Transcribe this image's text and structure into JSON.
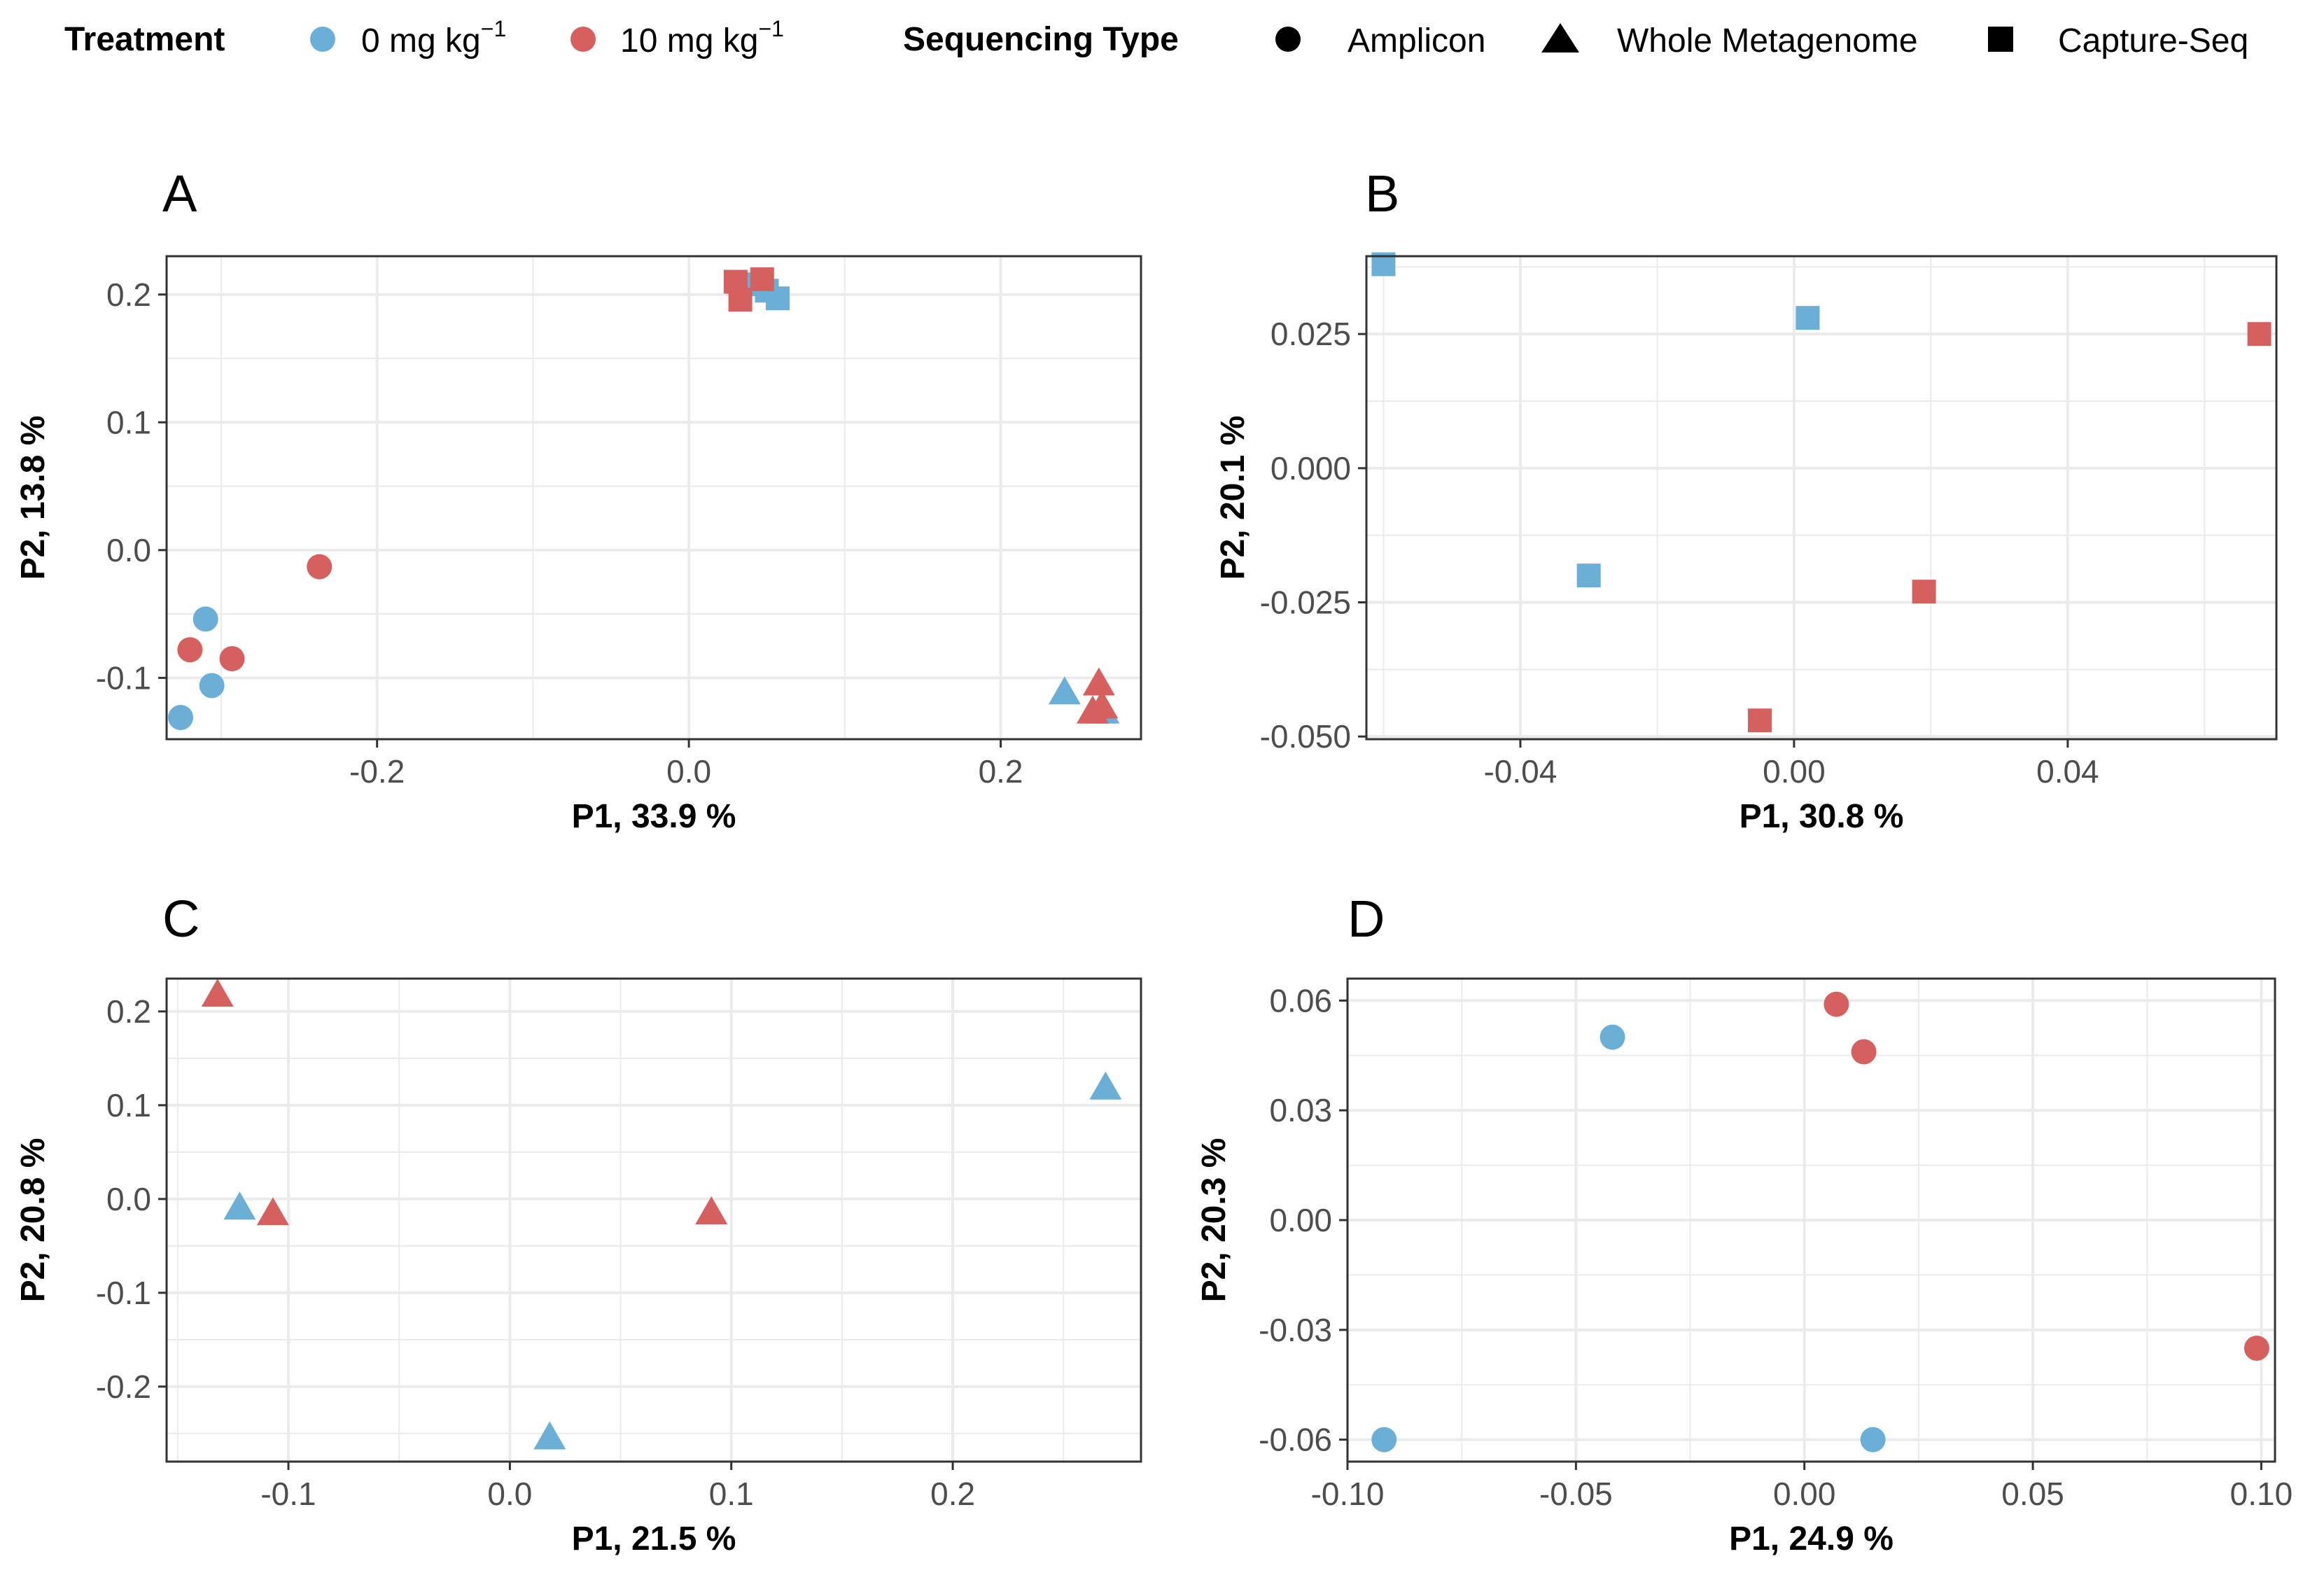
{
  "colors": {
    "ctrl": "#6baed6",
    "treat": "#d65f5f",
    "grid": "#ebebeb",
    "frame": "#333333"
  },
  "legend": {
    "treatment_title": "Treatment",
    "treatment_items": [
      {
        "base": "0 mg kg",
        "sup": "−1",
        "color": "#6baed6"
      },
      {
        "base": "10 mg kg",
        "sup": "−1",
        "color": "#d65f5f"
      }
    ],
    "seq_title": "Sequencing Type",
    "seq_items": [
      {
        "label": "Amplicon",
        "shape": "circle"
      },
      {
        "label": "Whole Metagenome",
        "shape": "triangle"
      },
      {
        "label": "Capture-Seq",
        "shape": "square"
      }
    ]
  },
  "chart_data": [
    {
      "type": "scatter",
      "panel": "A",
      "xlabel": "P1,  33.9 %",
      "ylabel": "P2,  13.8 %",
      "xlim": [
        -0.335,
        0.29
      ],
      "ylim": [
        -0.148,
        0.23
      ],
      "xticks": [
        -0.2,
        0.0,
        0.2
      ],
      "xtick_labels": [
        "-0.2",
        "0.0",
        "0.2"
      ],
      "yticks": [
        -0.1,
        0.0,
        0.1,
        0.2
      ],
      "ytick_labels": [
        "-0.1",
        "0.0",
        "0.1",
        "0.2"
      ],
      "points": [
        {
          "x": -0.31,
          "y": -0.054,
          "group": "0 mg kg-1",
          "shape": "circle"
        },
        {
          "x": -0.306,
          "y": -0.106,
          "group": "0 mg kg-1",
          "shape": "circle"
        },
        {
          "x": -0.326,
          "y": -0.131,
          "group": "0 mg kg-1",
          "shape": "circle"
        },
        {
          "x": -0.237,
          "y": -0.013,
          "group": "10 mg kg-1",
          "shape": "circle"
        },
        {
          "x": -0.32,
          "y": -0.078,
          "group": "10 mg kg-1",
          "shape": "circle"
        },
        {
          "x": -0.293,
          "y": -0.085,
          "group": "10 mg kg-1",
          "shape": "circle"
        },
        {
          "x": 0.05,
          "y": 0.203,
          "group": "0 mg kg-1",
          "shape": "square"
        },
        {
          "x": 0.057,
          "y": 0.197,
          "group": "0 mg kg-1",
          "shape": "square"
        },
        {
          "x": 0.042,
          "y": 0.208,
          "group": "0 mg kg-1",
          "shape": "square"
        },
        {
          "x": 0.03,
          "y": 0.21,
          "group": "10 mg kg-1",
          "shape": "square"
        },
        {
          "x": 0.047,
          "y": 0.212,
          "group": "10 mg kg-1",
          "shape": "square"
        },
        {
          "x": 0.033,
          "y": 0.196,
          "group": "10 mg kg-1",
          "shape": "square"
        },
        {
          "x": 0.241,
          "y": -0.112,
          "group": "0 mg kg-1",
          "shape": "triangle"
        },
        {
          "x": 0.263,
          "y": -0.127,
          "group": "0 mg kg-1",
          "shape": "triangle"
        },
        {
          "x": 0.266,
          "y": -0.127,
          "group": "0 mg kg-1",
          "shape": "triangle"
        },
        {
          "x": 0.263,
          "y": -0.105,
          "group": "10 mg kg-1",
          "shape": "triangle"
        },
        {
          "x": 0.259,
          "y": -0.127,
          "group": "10 mg kg-1",
          "shape": "triangle"
        },
        {
          "x": 0.265,
          "y": -0.123,
          "group": "10 mg kg-1",
          "shape": "triangle"
        }
      ]
    },
    {
      "type": "scatter",
      "panel": "B",
      "xlabel": "P1,  30.8 %",
      "ylabel": "P2,  20.1 %",
      "xlim": [
        -0.0625,
        0.0705
      ],
      "ylim": [
        -0.0505,
        0.0395
      ],
      "xticks": [
        -0.04,
        0.0,
        0.04
      ],
      "xtick_labels": [
        "-0.04",
        "0.00",
        "0.04"
      ],
      "yticks": [
        -0.05,
        -0.025,
        0.0,
        0.025
      ],
      "ytick_labels": [
        "-0.050",
        "-0.025",
        "0.000",
        "0.025"
      ],
      "points": [
        {
          "x": -0.06,
          "y": 0.038,
          "group": "0 mg kg-1",
          "shape": "square"
        },
        {
          "x": 0.002,
          "y": 0.028,
          "group": "0 mg kg-1",
          "shape": "square"
        },
        {
          "x": -0.03,
          "y": -0.02,
          "group": "0 mg kg-1",
          "shape": "square"
        },
        {
          "x": 0.068,
          "y": 0.025,
          "group": "10 mg kg-1",
          "shape": "square"
        },
        {
          "x": 0.019,
          "y": -0.023,
          "group": "10 mg kg-1",
          "shape": "square"
        },
        {
          "x": -0.005,
          "y": -0.047,
          "group": "10 mg kg-1",
          "shape": "square"
        }
      ]
    },
    {
      "type": "scatter",
      "panel": "C",
      "xlabel": "P1,  21.5 %",
      "ylabel": "P2,  20.8 %",
      "xlim": [
        -0.155,
        0.285
      ],
      "ylim": [
        -0.28,
        0.235
      ],
      "xticks": [
        -0.1,
        0.0,
        0.1,
        0.2
      ],
      "xtick_labels": [
        "-0.1",
        "0.0",
        "0.1",
        "0.2"
      ],
      "yticks": [
        -0.2,
        -0.1,
        0.0,
        0.1,
        0.2
      ],
      "ytick_labels": [
        "-0.2",
        "-0.1",
        "0.0",
        "0.1",
        "0.2"
      ],
      "points": [
        {
          "x": 0.269,
          "y": 0.118,
          "group": "0 mg kg-1",
          "shape": "triangle"
        },
        {
          "x": -0.122,
          "y": -0.01,
          "group": "0 mg kg-1",
          "shape": "triangle"
        },
        {
          "x": 0.018,
          "y": -0.255,
          "group": "0 mg kg-1",
          "shape": "triangle"
        },
        {
          "x": -0.132,
          "y": 0.217,
          "group": "10 mg kg-1",
          "shape": "triangle"
        },
        {
          "x": -0.107,
          "y": -0.016,
          "group": "10 mg kg-1",
          "shape": "triangle"
        },
        {
          "x": 0.091,
          "y": -0.015,
          "group": "10 mg kg-1",
          "shape": "triangle"
        }
      ]
    },
    {
      "type": "scatter",
      "panel": "D",
      "xlabel": "P1,  24.9 %",
      "ylabel": "P2,  20.3 %",
      "xlim": [
        -0.1,
        0.103
      ],
      "ylim": [
        -0.066,
        0.066
      ],
      "xticks": [
        -0.1,
        -0.05,
        0.0,
        0.05,
        0.1
      ],
      "xtick_labels": [
        "-0.10",
        "-0.05",
        "0.00",
        "0.05",
        "0.10"
      ],
      "yticks": [
        -0.06,
        -0.03,
        0.0,
        0.03,
        0.06
      ],
      "ytick_labels": [
        "-0.06",
        "-0.03",
        "0.00",
        "0.03",
        "0.06"
      ],
      "points": [
        {
          "x": -0.042,
          "y": 0.05,
          "group": "0 mg kg-1",
          "shape": "circle"
        },
        {
          "x": -0.092,
          "y": -0.06,
          "group": "0 mg kg-1",
          "shape": "circle"
        },
        {
          "x": 0.015,
          "y": -0.06,
          "group": "0 mg kg-1",
          "shape": "circle"
        },
        {
          "x": 0.007,
          "y": 0.059,
          "group": "10 mg kg-1",
          "shape": "circle"
        },
        {
          "x": 0.013,
          "y": 0.046,
          "group": "10 mg kg-1",
          "shape": "circle"
        },
        {
          "x": 0.099,
          "y": -0.035,
          "group": "10 mg kg-1",
          "shape": "circle"
        }
      ]
    }
  ]
}
